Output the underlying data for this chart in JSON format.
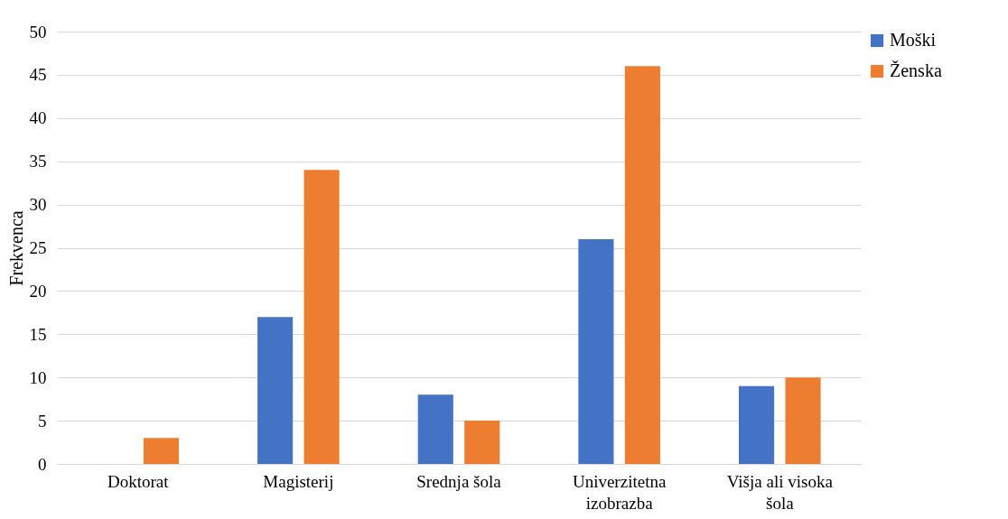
{
  "chart_data": {
    "type": "bar",
    "ylabel": "Frekvenca",
    "categories": [
      "Doktorat",
      "Magisterij",
      "Srednja šola",
      "Univerzitetna izobrazba",
      "Višja ali visoka šola"
    ],
    "series": [
      {
        "name": "Moški",
        "color": "#4472c4",
        "values": [
          0,
          17,
          8,
          26,
          9
        ]
      },
      {
        "name": "Ženska",
        "color": "#ed7d31",
        "values": [
          3,
          34,
          5,
          46,
          10
        ]
      }
    ],
    "ylim": [
      0,
      50
    ],
    "yticks": [
      0,
      5,
      10,
      15,
      20,
      25,
      30,
      35,
      40,
      45,
      50
    ],
    "grid": "y",
    "legend": "right"
  }
}
